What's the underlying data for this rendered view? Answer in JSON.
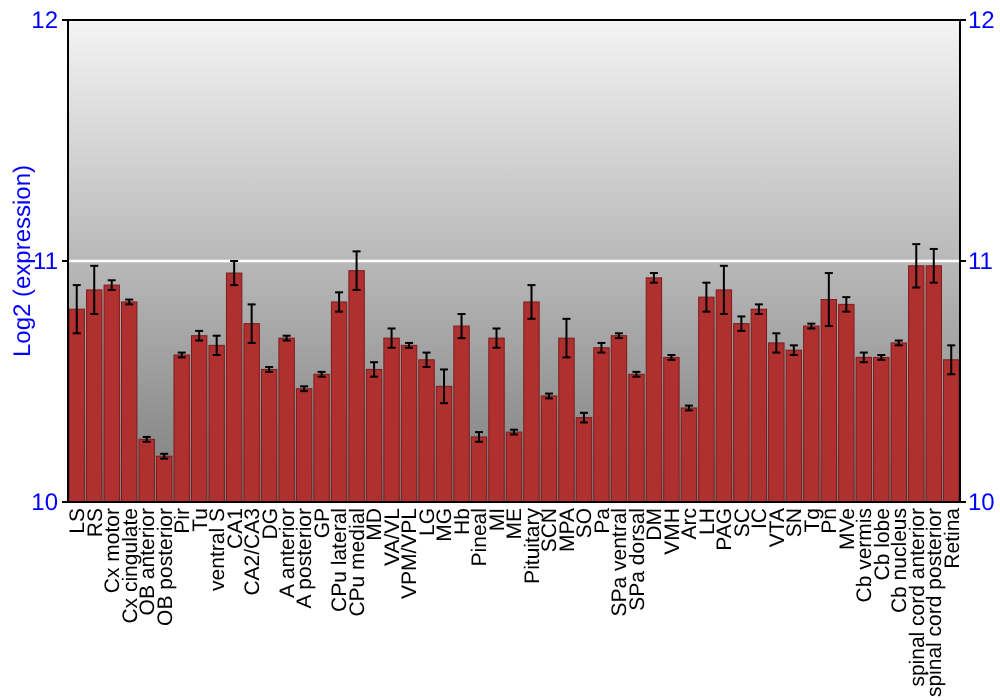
{
  "chart_data": {
    "type": "bar",
    "ylabel": "Log2 (expression)",
    "categories": [
      "LS",
      "RS",
      "Cx motor",
      "Cx cingulate",
      "OB anterior",
      "OB posterior",
      "Pir",
      "Tu",
      "ventral S",
      "CA1",
      "CA2/CA3",
      "DG",
      "A anterior",
      "A posterior",
      "GP",
      "CPu lateral",
      "CPu medial",
      "MD",
      "VA/VL",
      "VPM/VPL",
      "LG",
      "MG",
      "Hb",
      "Pineal",
      "MI",
      "ME",
      "Pituitary",
      "SCN",
      "MPA",
      "SO",
      "Pa",
      "SPa ventral",
      "SPa dorsal",
      "DM",
      "VMH",
      "Arc",
      "LH",
      "PAG",
      "SC",
      "IC",
      "VTA",
      "SN",
      "Tg",
      "Pn",
      "MVe",
      "Cb vermis",
      "Cb lobe",
      "Cb nucleus",
      "spinal cord anterior",
      "spinal cord posterior",
      "Retina"
    ],
    "values": [
      10.8,
      10.88,
      10.9,
      10.83,
      10.26,
      10.19,
      10.61,
      10.69,
      10.65,
      10.95,
      10.74,
      10.55,
      10.68,
      10.47,
      10.53,
      10.83,
      10.96,
      10.55,
      10.68,
      10.65,
      10.59,
      10.48,
      10.73,
      10.27,
      10.68,
      10.29,
      10.83,
      10.44,
      10.68,
      10.35,
      10.64,
      10.69,
      10.53,
      10.93,
      10.6,
      10.39,
      10.85,
      10.88,
      10.74,
      10.8,
      10.66,
      10.63,
      10.73,
      10.84,
      10.82,
      10.6,
      10.6,
      10.66,
      10.98,
      10.98,
      10.59
    ],
    "errors": [
      0.1,
      0.1,
      0.02,
      0.01,
      0.01,
      0.01,
      0.01,
      0.02,
      0.04,
      0.05,
      0.08,
      0.01,
      0.01,
      0.01,
      0.01,
      0.04,
      0.08,
      0.03,
      0.04,
      0.01,
      0.03,
      0.07,
      0.05,
      0.02,
      0.04,
      0.01,
      0.07,
      0.01,
      0.08,
      0.02,
      0.02,
      0.01,
      0.01,
      0.02,
      0.01,
      0.01,
      0.06,
      0.1,
      0.03,
      0.02,
      0.04,
      0.02,
      0.01,
      0.11,
      0.03,
      0.02,
      0.01,
      0.01,
      0.09,
      0.07,
      0.06
    ],
    "color": "#b03030",
    "ylim": [
      10,
      12
    ],
    "yticks": [
      10,
      11,
      12
    ],
    "y2lim": [
      10,
      12
    ],
    "y2ticks": [
      10,
      11,
      12
    ],
    "ref_lines": [
      {
        "axis": "y",
        "value": 11,
        "color": "#ffffff"
      }
    ]
  }
}
